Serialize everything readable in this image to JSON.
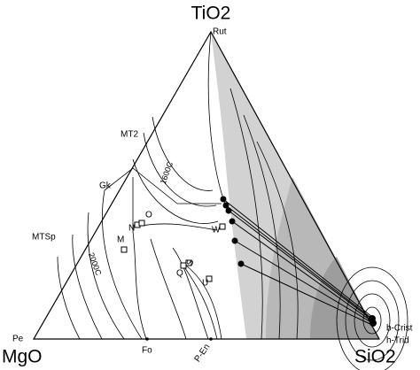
{
  "diagram": {
    "vertices": {
      "top": "TiO2",
      "left": "MgO",
      "right": "SiO2"
    },
    "phase_labels": [
      "Rut",
      "MT2",
      "Gk",
      "MTSp",
      "Pe",
      "Fo",
      "P-En",
      "b-Crist",
      "h-Trid"
    ],
    "isotherms": [
      "1600C",
      "2000C"
    ],
    "point_labels": [
      "O",
      "N",
      "M",
      "W",
      "Q",
      "S",
      "U"
    ]
  }
}
